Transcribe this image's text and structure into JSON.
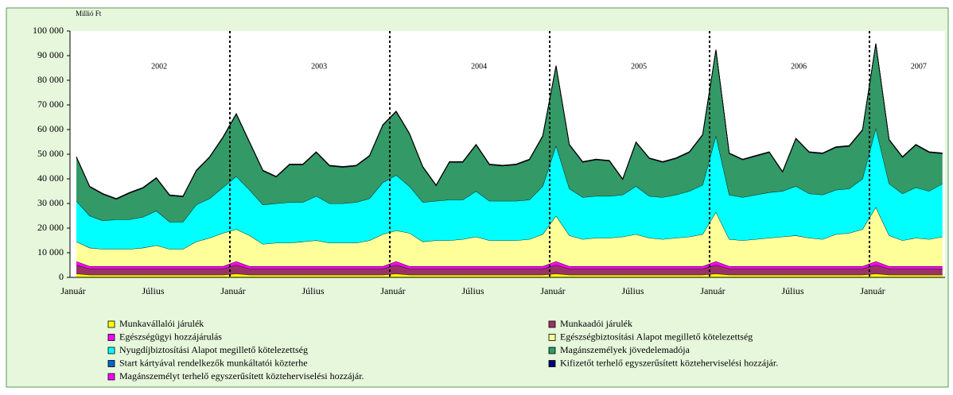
{
  "chart_data": {
    "type": "stacked_area",
    "unit_label": "Millió Ft",
    "year_labels": [
      "2002",
      "2003",
      "2004",
      "2005",
      "2006",
      "2007"
    ],
    "categories": [
      "Január",
      null,
      null,
      null,
      null,
      null,
      "Július",
      null,
      null,
      null,
      null,
      null,
      "Január",
      null,
      null,
      null,
      null,
      null,
      "Július",
      null,
      null,
      null,
      null,
      null,
      "Január",
      null,
      null,
      null,
      null,
      null,
      "Július",
      null,
      null,
      null,
      null,
      null,
      "Január",
      null,
      null,
      null,
      null,
      null,
      "Július",
      null,
      null,
      null,
      null,
      null,
      "Január",
      null,
      null,
      null,
      null,
      null,
      "Július",
      null,
      null,
      null,
      null,
      null,
      "Január",
      null,
      null,
      null,
      null,
      null
    ],
    "ylim": [
      0,
      100000
    ],
    "yticks": [
      0,
      {
        "value": 10000,
        "label": "10 000"
      },
      {
        "value": 20000,
        "label": "20 000"
      },
      {
        "value": 30000,
        "label": "30 000"
      },
      {
        "value": 40000,
        "label": "40 000"
      },
      {
        "value": 50000,
        "label": "50 000"
      },
      {
        "value": 60000,
        "label": "60 000"
      },
      {
        "value": 70000,
        "label": "70 000"
      },
      {
        "value": 80000,
        "label": "80 000"
      },
      {
        "value": 90000,
        "label": "90 000"
      },
      {
        "value": 100000,
        "label": "100 000"
      }
    ],
    "grid": false,
    "series": [
      {
        "name": "Munkavállalói járulék",
        "color": "#ffff00",
        "values": [
          1500,
          1000,
          1000,
          1000,
          1000,
          1000,
          1000,
          1000,
          1000,
          1000,
          1000,
          1000,
          1500,
          1000,
          1000,
          1000,
          1000,
          1000,
          1000,
          1000,
          1000,
          1000,
          1000,
          1000,
          1500,
          1000,
          1000,
          1000,
          1000,
          1000,
          1000,
          1000,
          1000,
          1000,
          1000,
          1000,
          1500,
          1000,
          1000,
          1000,
          1000,
          1000,
          1000,
          1000,
          1000,
          1000,
          1000,
          1000,
          1500,
          1000,
          1000,
          1000,
          1000,
          1000,
          1000,
          1000,
          1000,
          1000,
          1000,
          1000,
          1500,
          1000,
          1000,
          1000,
          1000,
          1000
        ]
      },
      {
        "name": "Munkaadói járulék",
        "color": "#993366",
        "values": [
          3500,
          2500,
          2500,
          2500,
          2500,
          2500,
          2500,
          2500,
          2500,
          2500,
          2500,
          2500,
          3500,
          2500,
          2500,
          2500,
          2500,
          2500,
          2500,
          2500,
          2500,
          2500,
          2500,
          2500,
          3500,
          2500,
          2500,
          2500,
          2500,
          2500,
          2500,
          2500,
          2500,
          2500,
          2500,
          2500,
          3500,
          2500,
          2500,
          2500,
          2500,
          2500,
          2500,
          2500,
          2500,
          2500,
          2500,
          2500,
          3500,
          2500,
          2500,
          2500,
          2500,
          2500,
          2500,
          2500,
          2500,
          2500,
          2500,
          2500,
          3500,
          2500,
          2500,
          2500,
          2500,
          2500
        ]
      },
      {
        "name": "Egészségügyi hozzájárulás",
        "color": "#ff00ff",
        "values": [
          1500,
          1000,
          1000,
          1000,
          1000,
          1000,
          1000,
          1000,
          1000,
          1000,
          1000,
          1000,
          1500,
          1000,
          1000,
          1000,
          1000,
          1000,
          1000,
          1000,
          1000,
          1000,
          1000,
          1000,
          1500,
          1000,
          1000,
          1000,
          1000,
          1000,
          1000,
          1000,
          1000,
          1000,
          1000,
          1000,
          1500,
          1000,
          1000,
          1000,
          1000,
          1000,
          1000,
          1000,
          1000,
          1000,
          1000,
          1000,
          1500,
          1000,
          1000,
          1000,
          1000,
          1000,
          1000,
          1000,
          1000,
          1000,
          1000,
          1000,
          1500,
          1000,
          1000,
          1000,
          1000,
          1000
        ]
      },
      {
        "name": "Egészségbiztosítási Alapot megillető kötelezettség",
        "color": "#ffff99",
        "values": [
          8000,
          7500,
          7000,
          7000,
          7000,
          7500,
          8500,
          7000,
          7000,
          10000,
          11500,
          13500,
          13000,
          12500,
          9000,
          9500,
          9500,
          10000,
          10500,
          9500,
          9500,
          9500,
          10500,
          13000,
          12500,
          13500,
          10000,
          10500,
          10500,
          11000,
          12000,
          10500,
          10500,
          10500,
          11000,
          13000,
          18500,
          12500,
          11000,
          11500,
          11500,
          12000,
          13000,
          11500,
          11000,
          11500,
          12000,
          13000,
          20000,
          11000,
          10500,
          11000,
          11500,
          12000,
          12500,
          11500,
          11000,
          13000,
          13500,
          15000,
          22000,
          12500,
          10500,
          11500,
          11000,
          12000
        ]
      },
      {
        "name": "Nyugdíjbiztosítási Alapot megillető kötelezettség",
        "color": "#00ffff",
        "values": [
          16500,
          13000,
          11500,
          12000,
          12000,
          12500,
          14000,
          11000,
          11000,
          15000,
          16000,
          18500,
          21500,
          18500,
          16000,
          16000,
          16500,
          16000,
          18000,
          16000,
          16000,
          16500,
          17000,
          21000,
          22500,
          19000,
          16000,
          16000,
          16500,
          16000,
          18500,
          16000,
          16000,
          16000,
          16000,
          19500,
          28500,
          19000,
          17000,
          17000,
          17000,
          17000,
          19500,
          17000,
          17000,
          17500,
          18500,
          20000,
          31000,
          18000,
          17500,
          18000,
          18500,
          18500,
          20000,
          18000,
          18000,
          18000,
          18000,
          20500,
          32000,
          21000,
          19000,
          20500,
          19500,
          21500
        ]
      },
      {
        "name": "Magánszemélyek jövedelemadója",
        "color": "#339966",
        "values": [
          17700,
          11700,
          10700,
          8200,
          10700,
          11700,
          13200,
          10700,
          10200,
          13700,
          16700,
          20200,
          25200,
          19200,
          13700,
          10700,
          15200,
          15200,
          17700,
          15200,
          14700,
          14700,
          17200,
          23200,
          25700,
          21200,
          14200,
          6200,
          15200,
          15200,
          18700,
          14700,
          14200,
          14700,
          16200,
          20200,
          32200,
          17700,
          14200,
          14700,
          14200,
          6200,
          17700,
          15200,
          14200,
          14700,
          15700,
          20200,
          34700,
          16700,
          15200,
          15700,
          16200,
          7700,
          19200,
          16700,
          16700,
          17200,
          17200,
          19700,
          34200,
          17700,
          14700,
          17200,
          15700,
          12200
        ]
      },
      {
        "name": "Start kártyával rendelkezők munkáltatói közterhe",
        "color": "#0066cc",
        "values": [
          100,
          100,
          100,
          100,
          100,
          100,
          100,
          100,
          100,
          100,
          100,
          100,
          100,
          100,
          100,
          100,
          100,
          100,
          100,
          100,
          100,
          100,
          100,
          100,
          100,
          100,
          100,
          100,
          100,
          100,
          100,
          100,
          100,
          100,
          100,
          100,
          100,
          100,
          100,
          100,
          100,
          100,
          100,
          100,
          100,
          100,
          100,
          100,
          100,
          100,
          100,
          100,
          100,
          100,
          100,
          100,
          100,
          100,
          100,
          100,
          100,
          100,
          100,
          100,
          100,
          100
        ]
      },
      {
        "name": "Kifizetőt terhelő egyszerűsített közteherviselési hozzájár.",
        "color": "#000080",
        "values": [
          100,
          100,
          100,
          100,
          100,
          100,
          100,
          100,
          100,
          100,
          100,
          100,
          100,
          100,
          100,
          100,
          100,
          100,
          100,
          100,
          100,
          100,
          100,
          100,
          100,
          100,
          100,
          100,
          100,
          100,
          100,
          100,
          100,
          100,
          100,
          100,
          100,
          100,
          100,
          100,
          100,
          100,
          100,
          100,
          100,
          100,
          100,
          100,
          100,
          100,
          100,
          100,
          100,
          100,
          100,
          100,
          100,
          100,
          100,
          100,
          100,
          100,
          100,
          100,
          100,
          100
        ]
      },
      {
        "name": "Magánszemélyt terhelő egyszerűsített közteherviselési hozzájár.",
        "color": "#ff00ff",
        "values": [
          100,
          100,
          100,
          100,
          100,
          100,
          100,
          100,
          100,
          100,
          100,
          100,
          100,
          100,
          100,
          100,
          100,
          100,
          100,
          100,
          100,
          100,
          100,
          100,
          100,
          100,
          100,
          100,
          100,
          100,
          100,
          100,
          100,
          100,
          100,
          100,
          100,
          100,
          100,
          100,
          100,
          100,
          100,
          100,
          100,
          100,
          100,
          100,
          100,
          100,
          100,
          100,
          100,
          100,
          100,
          100,
          100,
          100,
          100,
          100,
          100,
          100,
          100,
          100,
          100,
          100
        ]
      }
    ]
  }
}
